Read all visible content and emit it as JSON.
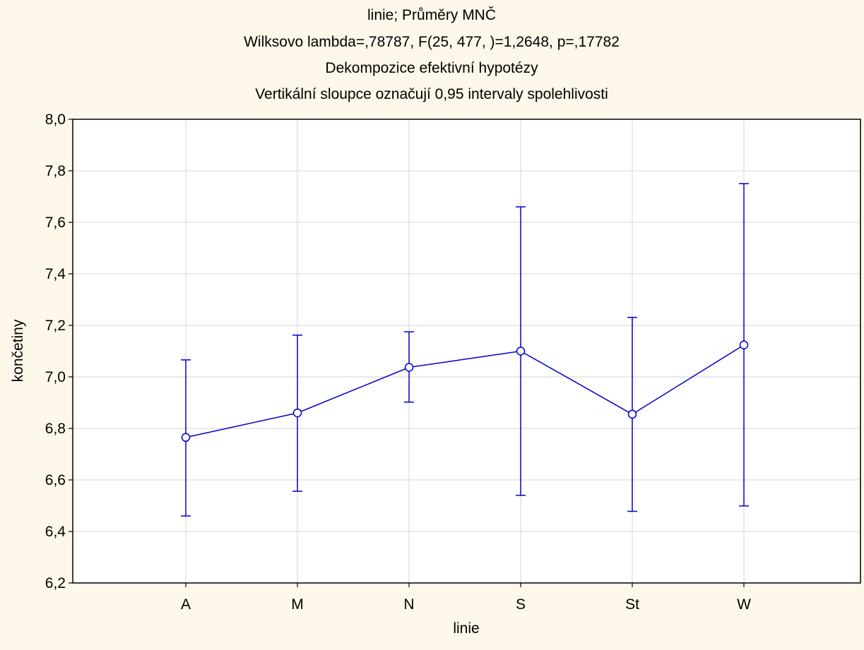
{
  "chart_data": {
    "type": "line",
    "title_lines": [
      "linie; Průměry MNČ",
      "Wilksovo lambda=,78787, F(25, 477,   )=1,2648, p=,17782",
      "Dekompozice efektivní hypotézy",
      "Vertikální sloupce označují 0,95 intervaly spolehlivosti"
    ],
    "xlabel": "linie",
    "ylabel": "končetiny",
    "categories": [
      "A",
      "M",
      "N",
      "S",
      "St",
      "W"
    ],
    "ylim": [
      6.2,
      8.0
    ],
    "yticks": [
      6.2,
      6.4,
      6.6,
      6.8,
      7.0,
      7.2,
      7.4,
      7.6,
      7.8,
      8.0
    ],
    "ytick_labels": [
      "6,2",
      "6,4",
      "6,6",
      "6,8",
      "7,0",
      "7,2",
      "7,4",
      "7,6",
      "7,8",
      "8,0"
    ],
    "grid": true,
    "series": [
      {
        "values": [
          6.765,
          6.86,
          7.037,
          7.1,
          6.855,
          7.124
        ],
        "lower": [
          6.46,
          6.556,
          6.902,
          6.54,
          6.478,
          6.499
        ],
        "upper": [
          7.066,
          7.162,
          7.175,
          7.66,
          7.231,
          7.75
        ],
        "color": "#0000cc"
      }
    ]
  }
}
